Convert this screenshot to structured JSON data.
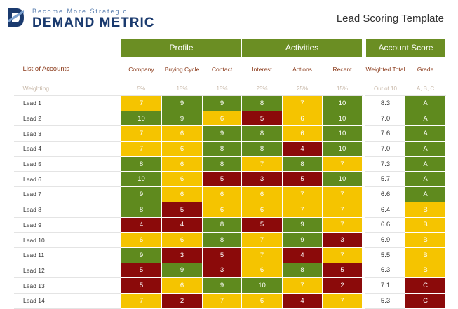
{
  "brand": {
    "tagline": "Become More Strategic",
    "name": "DEMAND METRIC"
  },
  "title": "Lead Scoring Template",
  "groups": {
    "profile": "Profile",
    "activities": "Activities",
    "account": "Account Score"
  },
  "headers": {
    "accounts": "List of Accounts",
    "company": "Company",
    "buying_cycle": "Buying Cycle",
    "contact": "Contact",
    "interest": "Interest",
    "actions": "Actions",
    "recent": "Recent",
    "weighted_total": "Weighted Total",
    "grade": "Grade"
  },
  "weighting": {
    "label": "Weighting",
    "company": "5%",
    "buying_cycle": "15%",
    "contact": "15%",
    "interest": "25%",
    "actions": "25%",
    "recent": "15%",
    "weighted_total": "Out of 10",
    "grade": "A, B, C"
  },
  "colors": {
    "high": "#5f8a1e",
    "mid": "#f5c400",
    "low": "#8b0a0a",
    "grade_a": "#5f8a1e",
    "grade_b": "#f5c400",
    "grade_c": "#8b0a0a"
  },
  "leads": [
    {
      "name": "Lead 1",
      "scores": [
        "7",
        "9",
        "9",
        "8",
        "7",
        "10"
      ],
      "total": "8.3",
      "grade": "A"
    },
    {
      "name": "Lead 2",
      "scores": [
        "10",
        "9",
        "6",
        "5",
        "6",
        "10"
      ],
      "total": "7.0",
      "grade": "A"
    },
    {
      "name": "Lead 3",
      "scores": [
        "7",
        "6",
        "9",
        "8",
        "6",
        "10"
      ],
      "total": "7.6",
      "grade": "A"
    },
    {
      "name": "Lead 4",
      "scores": [
        "7",
        "6",
        "8",
        "8",
        "4",
        "10"
      ],
      "total": "7.0",
      "grade": "A"
    },
    {
      "name": "Lead 5",
      "scores": [
        "8",
        "6",
        "8",
        "7",
        "8",
        "7"
      ],
      "total": "7.3",
      "grade": "A"
    },
    {
      "name": "Lead 6",
      "scores": [
        "10",
        "6",
        "5",
        "3",
        "5",
        "10"
      ],
      "total": "5.7",
      "grade": "A"
    },
    {
      "name": "Lead 7",
      "scores": [
        "9",
        "6",
        "6",
        "6",
        "7",
        "7"
      ],
      "total": "6.6",
      "grade": "A"
    },
    {
      "name": "Lead 8",
      "scores": [
        "8",
        "5",
        "6",
        "6",
        "7",
        "7"
      ],
      "total": "6.4",
      "grade": "B"
    },
    {
      "name": "Lead 9",
      "scores": [
        "4",
        "4",
        "8",
        "5",
        "9",
        "7"
      ],
      "total": "6.6",
      "grade": "B"
    },
    {
      "name": "Lead 10",
      "scores": [
        "6",
        "6",
        "8",
        "7",
        "9",
        "3"
      ],
      "total": "6.9",
      "grade": "B"
    },
    {
      "name": "Lead 11",
      "scores": [
        "9",
        "3",
        "5",
        "7",
        "4",
        "7"
      ],
      "total": "5.5",
      "grade": "B"
    },
    {
      "name": "Lead 12",
      "scores": [
        "5",
        "9",
        "3",
        "6",
        "8",
        "5"
      ],
      "total": "6.3",
      "grade": "B"
    },
    {
      "name": "Lead 13",
      "scores": [
        "5",
        "6",
        "9",
        "10",
        "7",
        "2"
      ],
      "total": "7.1",
      "grade": "C"
    },
    {
      "name": "Lead 14",
      "scores": [
        "7",
        "2",
        "7",
        "6",
        "4",
        "7"
      ],
      "total": "5.3",
      "grade": "C"
    }
  ]
}
